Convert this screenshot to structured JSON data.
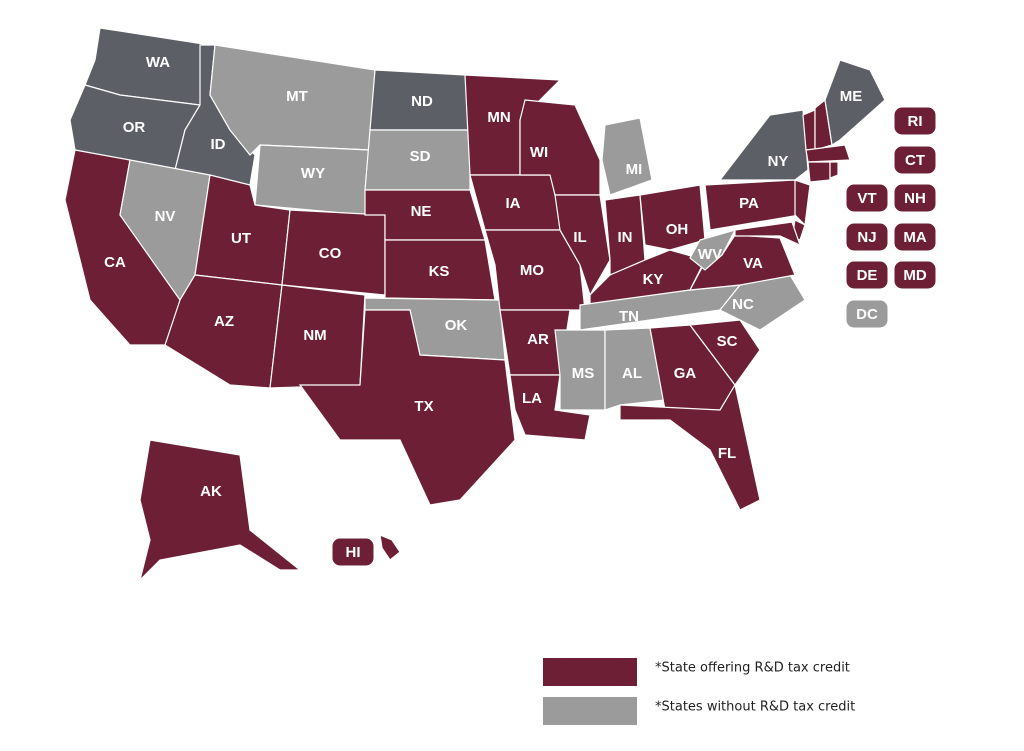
{
  "map": {
    "colors": {
      "credit": "#6d2035",
      "none": "#9b9b9b",
      "other": "#5d5f66"
    },
    "states": [
      {
        "label": "WA",
        "status": "other"
      },
      {
        "label": "OR",
        "status": "other"
      },
      {
        "label": "CA",
        "status": "credit"
      },
      {
        "label": "ID",
        "status": "other"
      },
      {
        "label": "NV",
        "status": "none"
      },
      {
        "label": "MT",
        "status": "none"
      },
      {
        "label": "WY",
        "status": "none"
      },
      {
        "label": "UT",
        "status": "credit"
      },
      {
        "label": "AZ",
        "status": "credit"
      },
      {
        "label": "CO",
        "status": "credit"
      },
      {
        "label": "NM",
        "status": "credit"
      },
      {
        "label": "ND",
        "status": "other"
      },
      {
        "label": "SD",
        "status": "none"
      },
      {
        "label": "NE",
        "status": "credit"
      },
      {
        "label": "KS",
        "status": "credit"
      },
      {
        "label": "OK",
        "status": "none"
      },
      {
        "label": "TX",
        "status": "credit"
      },
      {
        "label": "MN",
        "status": "credit"
      },
      {
        "label": "IA",
        "status": "credit"
      },
      {
        "label": "MO",
        "status": "credit"
      },
      {
        "label": "AR",
        "status": "credit"
      },
      {
        "label": "LA",
        "status": "credit"
      },
      {
        "label": "WI",
        "status": "credit"
      },
      {
        "label": "IL",
        "status": "credit"
      },
      {
        "label": "MI",
        "status": "none"
      },
      {
        "label": "IN",
        "status": "credit"
      },
      {
        "label": "OH",
        "status": "credit"
      },
      {
        "label": "KY",
        "status": "credit"
      },
      {
        "label": "TN",
        "status": "none"
      },
      {
        "label": "MS",
        "status": "none"
      },
      {
        "label": "AL",
        "status": "none"
      },
      {
        "label": "GA",
        "status": "credit"
      },
      {
        "label": "FL",
        "status": "credit"
      },
      {
        "label": "SC",
        "status": "credit"
      },
      {
        "label": "NC",
        "status": "none"
      },
      {
        "label": "VA",
        "status": "credit"
      },
      {
        "label": "WV",
        "status": "none"
      },
      {
        "label": "PA",
        "status": "credit"
      },
      {
        "label": "NY",
        "status": "other"
      },
      {
        "label": "VT",
        "status": "credit"
      },
      {
        "label": "NH",
        "status": "credit"
      },
      {
        "label": "MA",
        "status": "credit"
      },
      {
        "label": "CT",
        "status": "credit"
      },
      {
        "label": "RI",
        "status": "credit"
      },
      {
        "label": "NJ",
        "status": "credit"
      },
      {
        "label": "DE",
        "status": "credit"
      },
      {
        "label": "MD",
        "status": "credit"
      },
      {
        "label": "ME",
        "status": "other"
      },
      {
        "label": "AK",
        "status": "credit"
      },
      {
        "label": "HI",
        "status": "credit"
      },
      {
        "label": "DC",
        "status": "none"
      }
    ],
    "legend": [
      {
        "label": "*State offering R&D tax credit",
        "status": "credit"
      },
      {
        "label": "*States without R&D tax credit",
        "status": "none"
      }
    ]
  }
}
